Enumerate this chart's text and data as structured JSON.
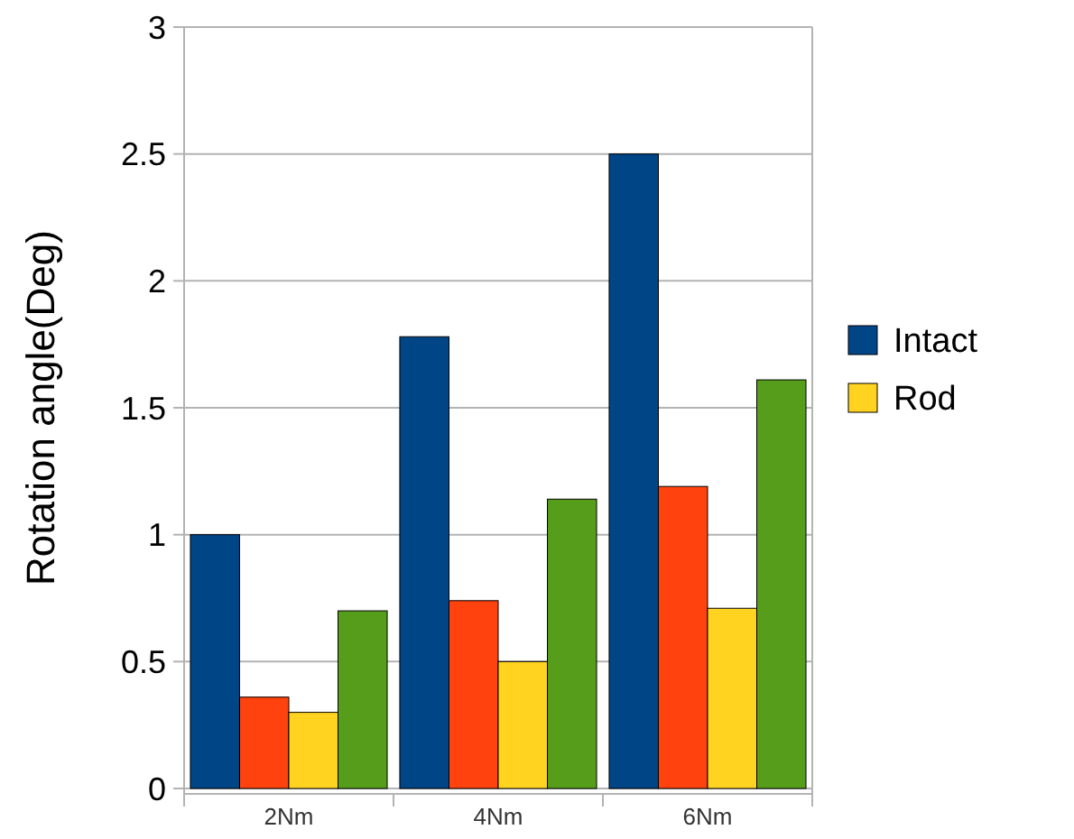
{
  "chart_data": {
    "type": "bar",
    "ylabel": "Rotation angle(Deg)",
    "categories": [
      "2Nm",
      "4Nm",
      "6Nm"
    ],
    "series": [
      {
        "name": "Intact",
        "color": "#004586",
        "values": [
          1.0,
          1.78,
          2.5
        ]
      },
      {
        "color": "#ff420e",
        "values": [
          0.36,
          0.74,
          1.19
        ]
      },
      {
        "name": "Rod",
        "color": "#ffd320",
        "values": [
          0.3,
          0.5,
          0.71
        ]
      },
      {
        "color": "#579d1c",
        "values": [
          0.7,
          1.14,
          1.61
        ]
      }
    ],
    "ylim": [
      0,
      3
    ],
    "yticks": [
      0,
      0.5,
      1,
      1.5,
      2,
      2.5,
      3
    ],
    "grid": "y",
    "legend": "right"
  }
}
